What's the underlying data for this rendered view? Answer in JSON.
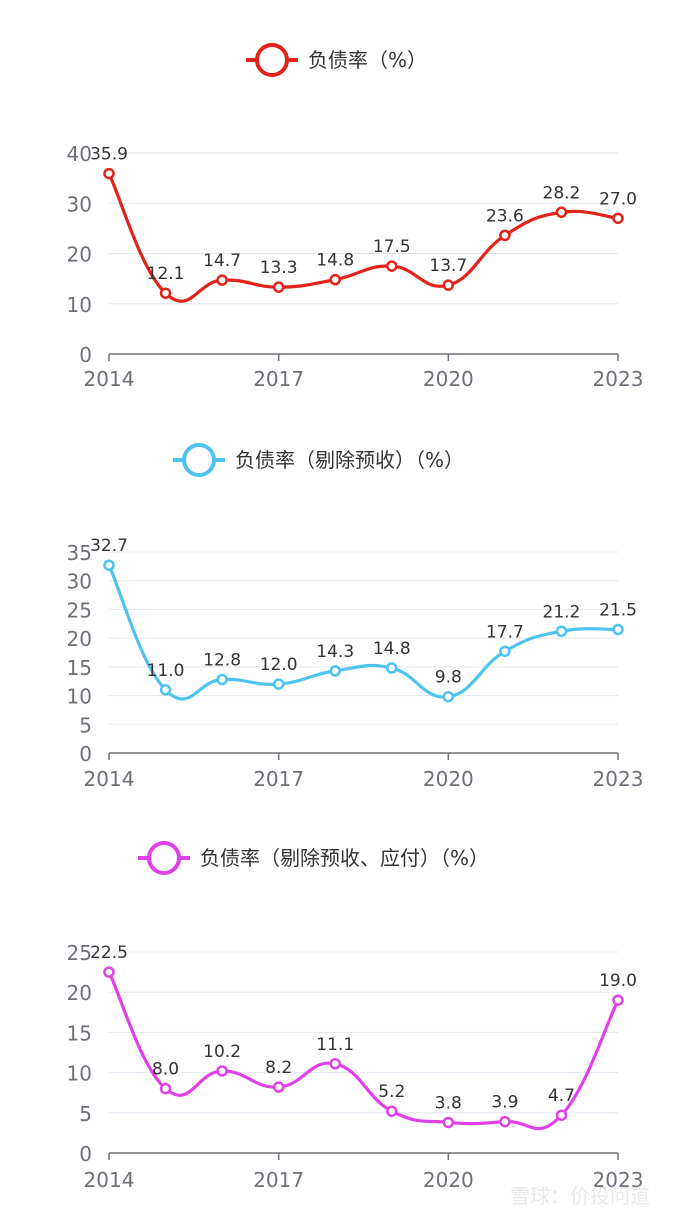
{
  "watermark": "雪球：价投问道",
  "chart_data": [
    {
      "type": "line",
      "legend": "负债率（%）",
      "color": "#e2231a",
      "x": [
        "2014",
        "2015",
        "2016",
        "2017",
        "2018",
        "2019",
        "2020",
        "2021",
        "2022",
        "2023"
      ],
      "xticks": [
        "2014",
        "2017",
        "2020",
        "2023"
      ],
      "values": [
        35.9,
        12.1,
        14.7,
        13.3,
        14.8,
        17.5,
        13.7,
        23.6,
        28.2,
        27.0
      ],
      "labels": [
        "35.9",
        "12.1",
        "14.7",
        "13.3",
        "14.8",
        "17.5",
        "13.7",
        "23.6",
        "28.2",
        "27.0"
      ],
      "ylim": [
        0,
        40
      ],
      "yticks": [
        "0",
        "10",
        "20",
        "30",
        "40"
      ],
      "grid": true,
      "smooth": true
    },
    {
      "type": "line",
      "legend": "负债率（剔除预收）（%）",
      "color": "#4fc3ef",
      "x": [
        "2014",
        "2015",
        "2016",
        "2017",
        "2018",
        "2019",
        "2020",
        "2021",
        "2022",
        "2023"
      ],
      "xticks": [
        "2014",
        "2017",
        "2020",
        "2023"
      ],
      "values": [
        32.7,
        11.0,
        12.8,
        12.0,
        14.3,
        14.8,
        9.8,
        17.7,
        21.2,
        21.5
      ],
      "labels": [
        "32.7",
        "11.0",
        "12.8",
        "12.0",
        "14.3",
        "14.8",
        "9.8",
        "17.7",
        "21.2",
        "21.5"
      ],
      "ylim": [
        0,
        35
      ],
      "yticks": [
        "0",
        "5",
        "10",
        "15",
        "20",
        "25",
        "30",
        "35"
      ],
      "grid": true,
      "smooth": true
    },
    {
      "type": "line",
      "legend": "负债率（剔除预收、应付）（%）",
      "color": "#e040e8",
      "x": [
        "2014",
        "2015",
        "2016",
        "2017",
        "2018",
        "2019",
        "2020",
        "2021",
        "2022",
        "2023"
      ],
      "xticks": [
        "2014",
        "2017",
        "2020",
        "2023"
      ],
      "values": [
        22.5,
        8.0,
        10.2,
        8.2,
        11.1,
        5.2,
        3.8,
        3.9,
        4.7,
        19.0
      ],
      "labels": [
        "22.5",
        "8.0",
        "10.2",
        "8.2",
        "11.1",
        "5.2",
        "3.8",
        "3.9",
        "4.7",
        "19.0"
      ],
      "ylim": [
        0,
        25
      ],
      "yticks": [
        "0",
        "5",
        "10",
        "15",
        "20",
        "25"
      ],
      "grid": true,
      "smooth": true
    }
  ]
}
